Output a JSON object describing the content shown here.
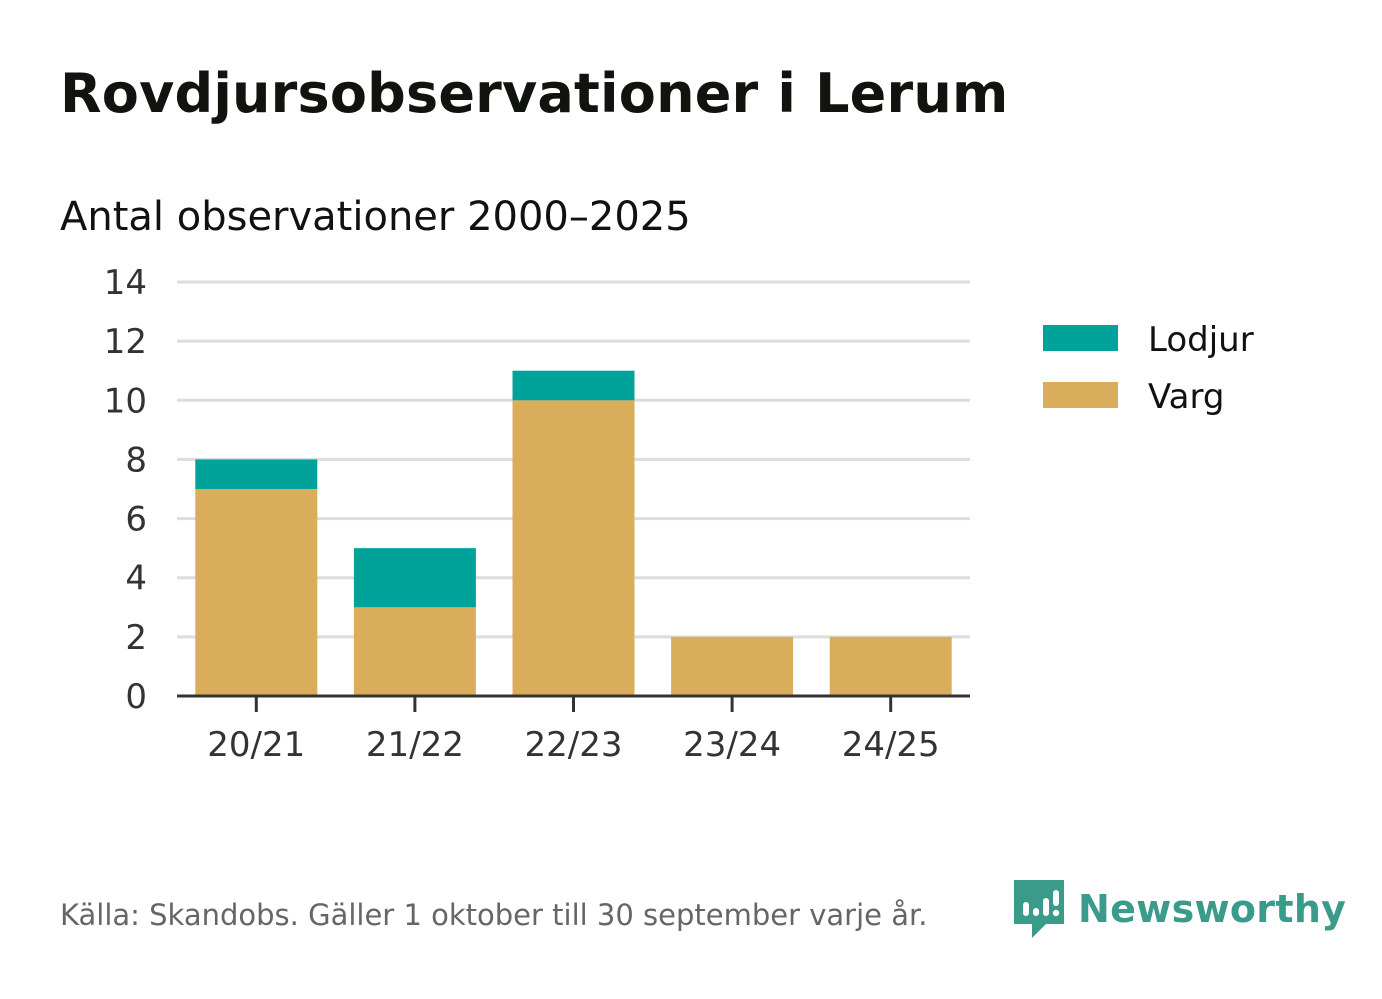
{
  "header": {
    "title": "Rovdjursobservationer i Lerum",
    "subtitle": "Antal observationer 2000–2025"
  },
  "chart_data": {
    "type": "bar",
    "stacked": true,
    "title": "Rovdjursobservationer i Lerum",
    "subtitle": "Antal observationer 2000–2025",
    "xlabel": "",
    "ylabel": "",
    "categories": [
      "20/21",
      "21/22",
      "22/23",
      "23/24",
      "24/25"
    ],
    "series": [
      {
        "name": "Varg",
        "color": "#d9ad5c",
        "values": [
          7,
          3,
          10,
          2,
          2
        ]
      },
      {
        "name": "Lodjur",
        "color": "#00a29a",
        "values": [
          1,
          2,
          1,
          0,
          0
        ]
      }
    ],
    "legend_order": [
      "Lodjur",
      "Varg"
    ],
    "ylim": [
      0,
      14
    ],
    "yticks": [
      0,
      2,
      4,
      6,
      8,
      10,
      12,
      14
    ],
    "yticklabels": [
      "0",
      "2",
      "4",
      "6",
      "8",
      "10",
      "12",
      "14"
    ],
    "grid": true,
    "legend_position": "right"
  },
  "footer": {
    "source": "Källa: Skandobs. Gäller 1 oktober till 30 september varje år.",
    "brand": "Newsworthy",
    "brand_color": "#3a9b8b"
  }
}
